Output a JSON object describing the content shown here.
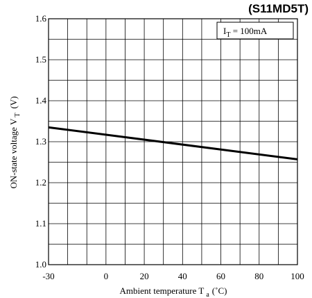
{
  "chart_data": {
    "type": "line",
    "title": "(S11MD5T)",
    "xlabel": "Ambient temperature T",
    "xlabel_sub": "a",
    "xlabel_unit": "(˚C)",
    "ylabel": "ON-state voltage V",
    "ylabel_sub": "T",
    "ylabel_unit": "(V)",
    "xlim": [
      -30,
      100
    ],
    "ylim": [
      1.0,
      1.6
    ],
    "xticks": [
      -30,
      0,
      20,
      40,
      60,
      80,
      100
    ],
    "yticks": [
      1.0,
      1.1,
      1.2,
      1.3,
      1.4,
      1.5,
      1.6
    ],
    "xtick_labels": [
      "-30",
      "0",
      "20",
      "40",
      "60",
      "80",
      "100"
    ],
    "ytick_labels": [
      "1.0",
      "1.1",
      "1.2",
      "1.3",
      "1.4",
      "1.5",
      "1.6"
    ],
    "x_grid_step": 10,
    "y_grid_step": 0.05,
    "grid": true,
    "annotation": {
      "prefix": "I",
      "sub": "T",
      "text": " = 100mA"
    },
    "series": [
      {
        "x": [
          -30,
          100
        ],
        "y": [
          1.335,
          1.257
        ]
      }
    ]
  }
}
